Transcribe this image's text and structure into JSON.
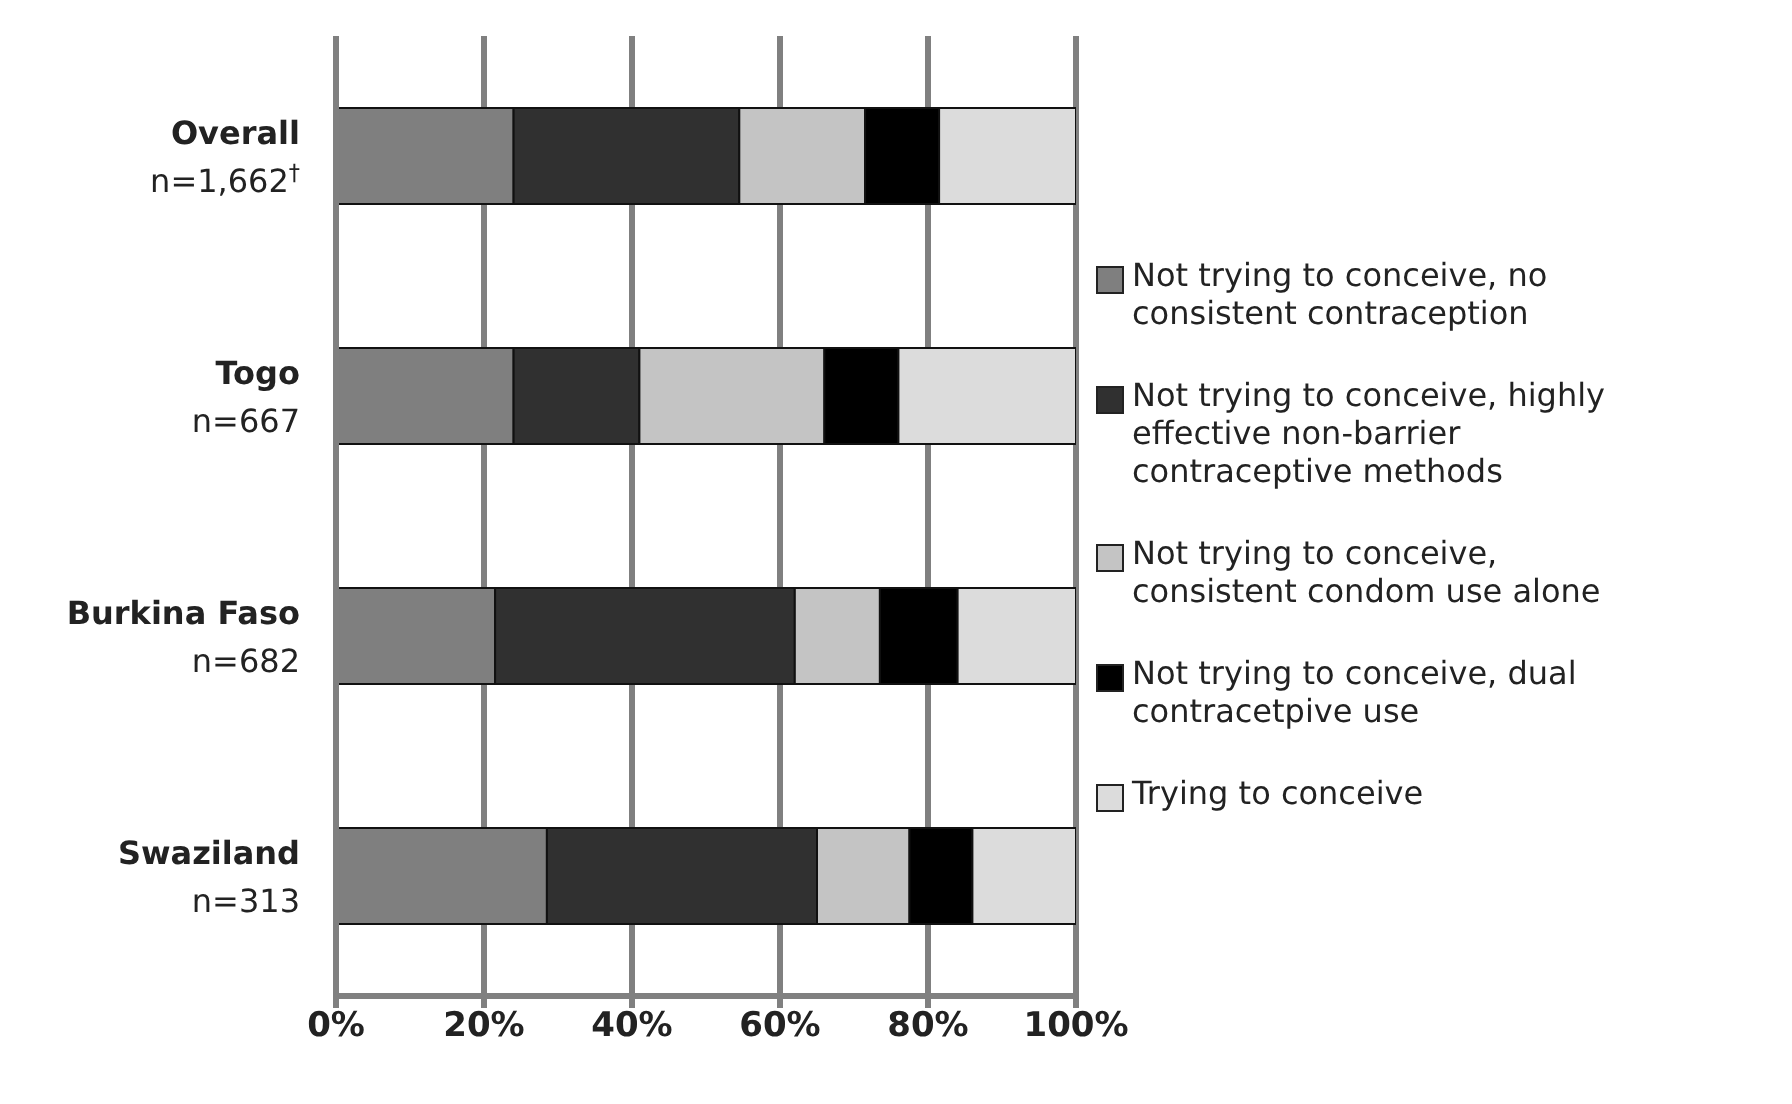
{
  "chart_data": {
    "type": "bar",
    "orientation": "horizontal",
    "stacked": true,
    "categories": [
      "Overall\nn=1,662$^{†}$",
      "Togo\nn=667",
      "Burkina Faso\nn=682",
      "Swaziland\nn=313"
    ],
    "series": [
      {
        "name": "Not trying to conceive, no consistent contraception",
        "color": "#7f7f7f",
        "values": [
          24,
          24,
          21.5,
          28.5
        ]
      },
      {
        "name": "Not trying to conceive, highly effective non-barrier contraceptive methods",
        "color": "#303030",
        "values": [
          30.5,
          17,
          40.5,
          36.5
        ]
      },
      {
        "name": "Not trying to conceive, consistent condom use alone",
        "color": "#c4c4c4",
        "values": [
          17,
          25,
          11.5,
          12.5
        ]
      },
      {
        "name": "Not trying to conceive, dual contracetpive use",
        "color": "#000000",
        "values": [
          10,
          10,
          10.5,
          8.5
        ]
      },
      {
        "name": "Trying to conceive",
        "color": "#dcdcdc",
        "values": [
          18.5,
          24,
          16,
          14
        ]
      }
    ],
    "xlim": [
      0,
      100
    ],
    "xticks": [
      {
        "value": 0,
        "label": "0%"
      },
      {
        "value": 20,
        "label": "20%"
      },
      {
        "value": 40,
        "label": "40%"
      },
      {
        "value": 60,
        "label": "60%"
      },
      {
        "value": 80,
        "label": "80%"
      },
      {
        "value": 100,
        "label": "100%"
      }
    ],
    "grid": "x",
    "legend": "right"
  }
}
